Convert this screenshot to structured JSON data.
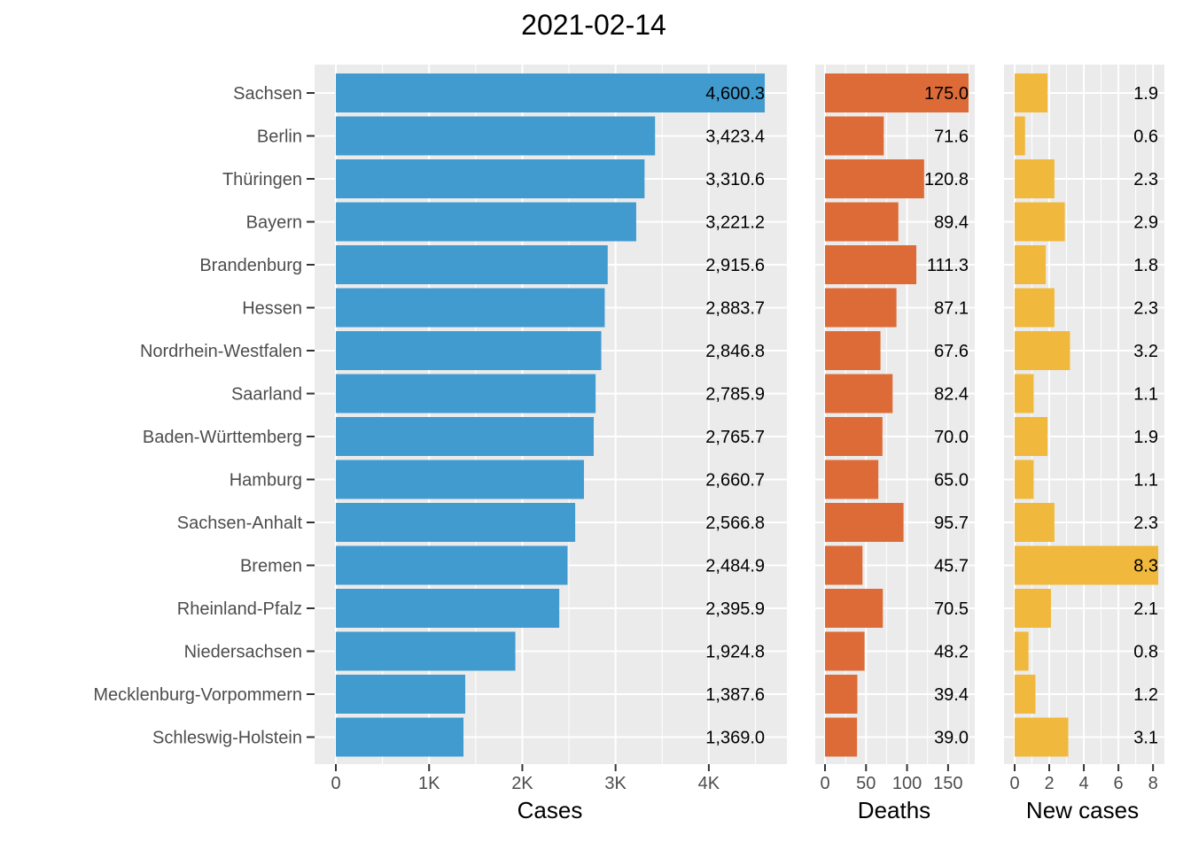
{
  "title": "2021-02-14",
  "chart_data": [
    {
      "type": "bar",
      "orientation": "horizontal",
      "xlabel": "Cases",
      "color": "#429bcf",
      "xlim": [
        0,
        4600
      ],
      "ticks": [
        0,
        1000,
        2000,
        3000,
        4000
      ],
      "tick_labels": [
        "0",
        "1K",
        "2K",
        "3K",
        "4K"
      ],
      "categories": [
        "Sachsen",
        "Berlin",
        "Thüringen",
        "Bayern",
        "Brandenburg",
        "Hessen",
        "Nordrhein-Westfalen",
        "Saarland",
        "Baden-Württemberg",
        "Hamburg",
        "Sachsen-Anhalt",
        "Bremen",
        "Rheinland-Pfalz",
        "Niedersachsen",
        "Mecklenburg-Vorpommern",
        "Schleswig-Holstein"
      ],
      "values": [
        4600.3,
        3423.4,
        3310.6,
        3221.2,
        2915.6,
        2883.7,
        2846.8,
        2785.9,
        2765.7,
        2660.7,
        2566.8,
        2484.9,
        2395.9,
        1924.8,
        1387.6,
        1369.0
      ],
      "value_labels": [
        "4,600.3",
        "3,423.4",
        "3,310.6",
        "3,221.2",
        "2,915.6",
        "2,883.7",
        "2,846.8",
        "2,785.9",
        "2,765.7",
        "2,660.7",
        "2,566.8",
        "2,484.9",
        "2,395.9",
        "1,924.8",
        "1,387.6",
        "1,369.0"
      ]
    },
    {
      "type": "bar",
      "orientation": "horizontal",
      "xlabel": "Deaths",
      "color": "#dd6b37",
      "xlim": [
        0,
        175
      ],
      "ticks": [
        0,
        50,
        100,
        150
      ],
      "tick_labels": [
        "0",
        "50",
        "100",
        "150"
      ],
      "categories": [
        "Sachsen",
        "Berlin",
        "Thüringen",
        "Bayern",
        "Brandenburg",
        "Hessen",
        "Nordrhein-Westfalen",
        "Saarland",
        "Baden-Württemberg",
        "Hamburg",
        "Sachsen-Anhalt",
        "Bremen",
        "Rheinland-Pfalz",
        "Niedersachsen",
        "Mecklenburg-Vorpommern",
        "Schleswig-Holstein"
      ],
      "values": [
        175.0,
        71.6,
        120.8,
        89.4,
        111.3,
        87.1,
        67.6,
        82.4,
        70.0,
        65.0,
        95.7,
        45.7,
        70.5,
        48.2,
        39.4,
        39.0
      ],
      "value_labels": [
        "175.0",
        "71.6",
        "120.8",
        "89.4",
        "111.3",
        "87.1",
        "67.6",
        "82.4",
        "70.0",
        "65.0",
        "95.7",
        "45.7",
        "70.5",
        "48.2",
        "39.4",
        "39.0"
      ]
    },
    {
      "type": "bar",
      "orientation": "horizontal",
      "xlabel": "New cases",
      "color": "#f0b83c",
      "xlim": [
        0,
        8.3
      ],
      "ticks": [
        0,
        2,
        4,
        6,
        8
      ],
      "tick_labels": [
        "0",
        "2",
        "4",
        "6",
        "8"
      ],
      "categories": [
        "Sachsen",
        "Berlin",
        "Thüringen",
        "Bayern",
        "Brandenburg",
        "Hessen",
        "Nordrhein-Westfalen",
        "Saarland",
        "Baden-Württemberg",
        "Hamburg",
        "Sachsen-Anhalt",
        "Bremen",
        "Rheinland-Pfalz",
        "Niedersachsen",
        "Mecklenburg-Vorpommern",
        "Schleswig-Holstein"
      ],
      "values": [
        1.9,
        0.6,
        2.3,
        2.9,
        1.8,
        2.3,
        3.2,
        1.1,
        1.9,
        1.1,
        2.3,
        8.3,
        2.1,
        0.8,
        1.2,
        3.1
      ],
      "value_labels": [
        "1.9",
        "0.6",
        "2.3",
        "2.9",
        "1.8",
        "2.3",
        "3.2",
        "1.1",
        "1.9",
        "1.1",
        "2.3",
        "8.3",
        "2.1",
        "0.8",
        "1.2",
        "3.1"
      ]
    }
  ]
}
